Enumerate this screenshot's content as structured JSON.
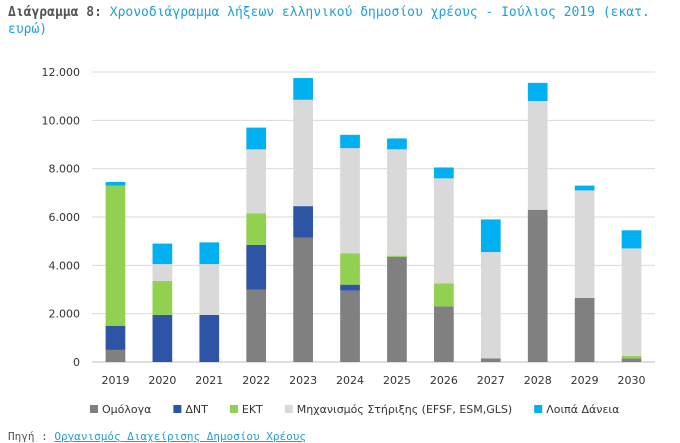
{
  "title": {
    "label": "Διάγραμμα 8:",
    "text": "Χρονοδιάγραμμα λήξεων ελληνικού δημοσίου χρέους - Ιούλιος 2019 (εκατ. ευρώ)"
  },
  "source": {
    "label": "Πηγή :",
    "text": "Οργανισμός Διαχείρισης Δημοσίου Χρέους"
  },
  "chart_data": {
    "type": "bar",
    "stacked": true,
    "categories": [
      "2019",
      "2020",
      "2021",
      "2022",
      "2023",
      "2024",
      "2025",
      "2026",
      "2027",
      "2028",
      "2029",
      "2030"
    ],
    "ylim": [
      0,
      12000
    ],
    "yticks": [
      0,
      2000,
      4000,
      6000,
      8000,
      10000,
      12000
    ],
    "ytick_labels": [
      "0",
      "2.000",
      "4.000",
      "6.000",
      "8.000",
      "10.000",
      "12.000"
    ],
    "grid": true,
    "legend_position": "bottom",
    "series": [
      {
        "name": "Ομόλογα",
        "color": "#808080",
        "values": [
          500,
          0,
          0,
          3000,
          5150,
          2950,
          4350,
          2300,
          150,
          6300,
          2650,
          150
        ]
      },
      {
        "name": "ΔΝΤ",
        "color": "#2e55a5",
        "values": [
          1000,
          1950,
          1950,
          1850,
          1300,
          250,
          0,
          0,
          0,
          0,
          0,
          0
        ]
      },
      {
        "name": "ΕΚΤ",
        "color": "#92d050",
        "values": [
          5800,
          1400,
          0,
          1300,
          0,
          1300,
          50,
          950,
          0,
          0,
          0,
          100
        ]
      },
      {
        "name": "Μηχανισμός Στήριξης (EFSF, ESM,GLS)",
        "color": "#d9d9d9",
        "values": [
          0,
          700,
          2100,
          2650,
          4400,
          4350,
          4400,
          4350,
          4400,
          4500,
          4450,
          4450
        ]
      },
      {
        "name": "Λοιπά Δάνεια",
        "color": "#00b0f0",
        "values": [
          150,
          850,
          900,
          900,
          900,
          550,
          450,
          450,
          1350,
          750,
          200,
          750
        ]
      }
    ]
  }
}
